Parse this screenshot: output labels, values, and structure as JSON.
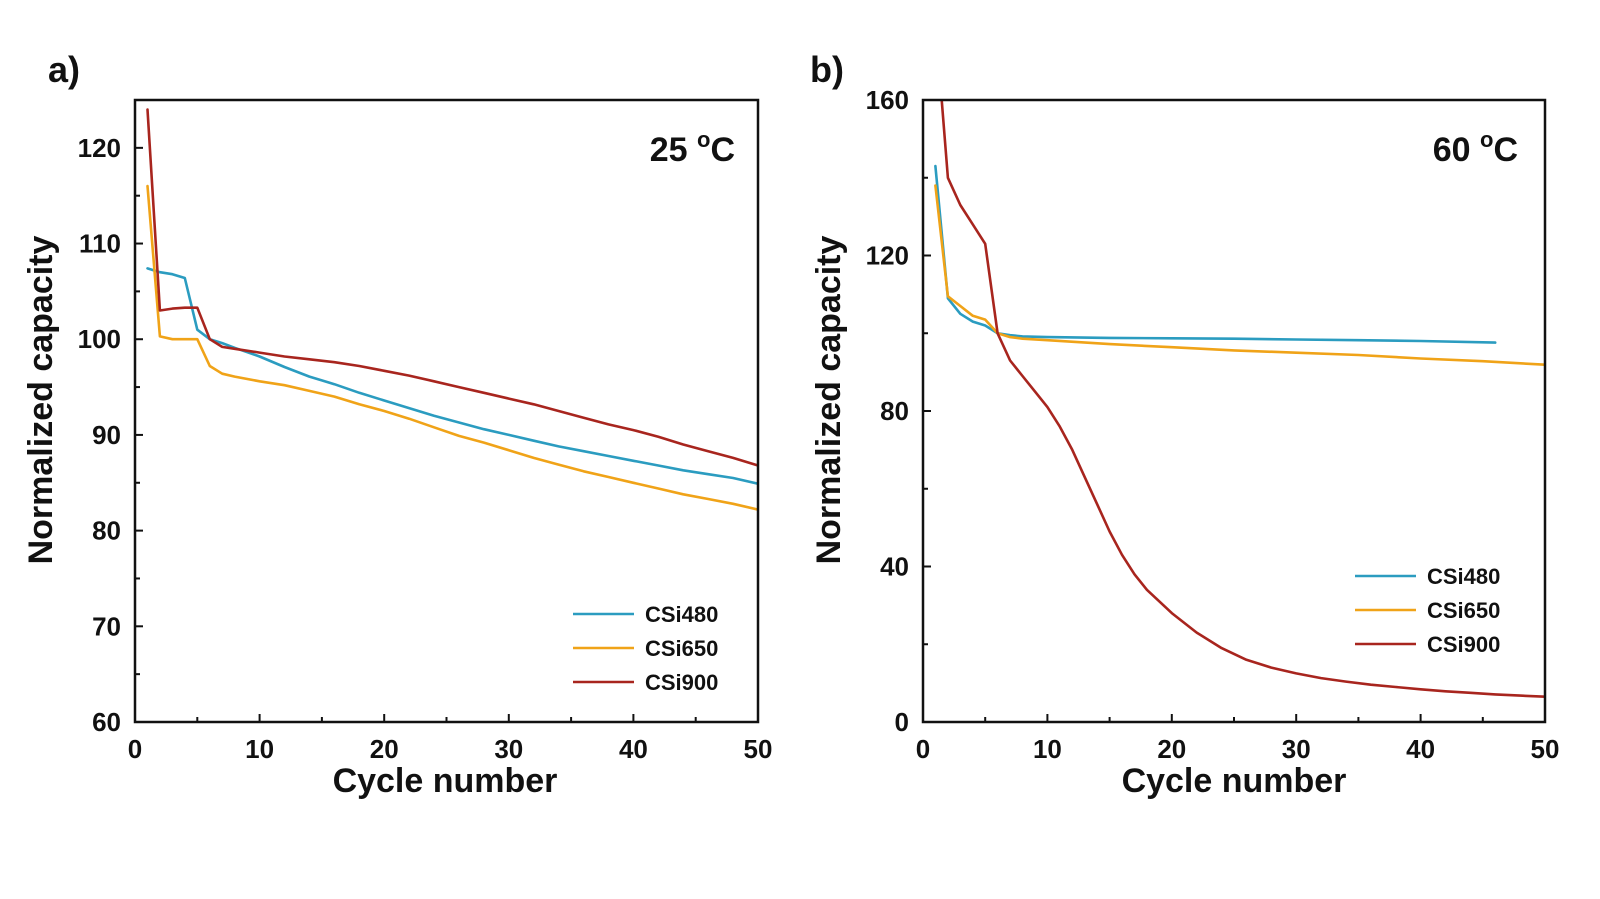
{
  "chart_data": [
    {
      "type": "line",
      "panel_label": "a)",
      "annotation": "25 °C",
      "annotation_main": "25 ",
      "annotation_sup": "o",
      "annotation_unit": "C",
      "xlabel": "Cycle number",
      "ylabel": "Normalized capacity",
      "xlim": [
        0,
        50
      ],
      "ylim": [
        60,
        125
      ],
      "xticks": [
        0,
        10,
        20,
        30,
        40,
        50
      ],
      "yticks": [
        60,
        70,
        80,
        90,
        100,
        110,
        120
      ],
      "legend_position": "bottom-right",
      "series": [
        {
          "name": "CSi480",
          "color": "#2b9cc0",
          "points": [
            [
              1,
              107.4
            ],
            [
              2,
              107
            ],
            [
              3,
              106.8
            ],
            [
              4,
              106.4
            ],
            [
              5,
              101
            ],
            [
              6,
              100
            ],
            [
              7,
              99.6
            ],
            [
              8,
              99.1
            ],
            [
              10,
              98.2
            ],
            [
              12,
              97.1
            ],
            [
              14,
              96.1
            ],
            [
              16,
              95.3
            ],
            [
              18,
              94.4
            ],
            [
              20,
              93.6
            ],
            [
              22,
              92.8
            ],
            [
              24,
              92
            ],
            [
              26,
              91.3
            ],
            [
              28,
              90.6
            ],
            [
              30,
              90
            ],
            [
              32,
              89.4
            ],
            [
              34,
              88.8
            ],
            [
              36,
              88.3
            ],
            [
              38,
              87.8
            ],
            [
              40,
              87.3
            ],
            [
              42,
              86.8
            ],
            [
              44,
              86.3
            ],
            [
              46,
              85.9
            ],
            [
              48,
              85.5
            ],
            [
              50,
              84.9
            ]
          ]
        },
        {
          "name": "CSi650",
          "color": "#f0a318",
          "points": [
            [
              1,
              116
            ],
            [
              2,
              100.3
            ],
            [
              3,
              100
            ],
            [
              4,
              100
            ],
            [
              5,
              100
            ],
            [
              6,
              97.2
            ],
            [
              7,
              96.4
            ],
            [
              8,
              96.1
            ],
            [
              10,
              95.6
            ],
            [
              12,
              95.2
            ],
            [
              14,
              94.6
            ],
            [
              16,
              94
            ],
            [
              18,
              93.2
            ],
            [
              20,
              92.5
            ],
            [
              22,
              91.7
            ],
            [
              24,
              90.8
            ],
            [
              26,
              89.9
            ],
            [
              28,
              89.2
            ],
            [
              30,
              88.4
            ],
            [
              32,
              87.6
            ],
            [
              34,
              86.9
            ],
            [
              36,
              86.2
            ],
            [
              38,
              85.6
            ],
            [
              40,
              85
            ],
            [
              42,
              84.4
            ],
            [
              44,
              83.8
            ],
            [
              46,
              83.3
            ],
            [
              48,
              82.8
            ],
            [
              50,
              82.2
            ]
          ]
        },
        {
          "name": "CSi900",
          "color": "#a8251e",
          "points": [
            [
              1,
              124
            ],
            [
              2,
              103
            ],
            [
              3,
              103.2
            ],
            [
              4,
              103.3
            ],
            [
              5,
              103.3
            ],
            [
              6,
              100
            ],
            [
              7,
              99.2
            ],
            [
              8,
              99
            ],
            [
              10,
              98.6
            ],
            [
              12,
              98.2
            ],
            [
              14,
              97.9
            ],
            [
              16,
              97.6
            ],
            [
              18,
              97.2
            ],
            [
              20,
              96.7
            ],
            [
              22,
              96.2
            ],
            [
              24,
              95.6
            ],
            [
              26,
              95
            ],
            [
              28,
              94.4
            ],
            [
              30,
              93.8
            ],
            [
              32,
              93.2
            ],
            [
              34,
              92.5
            ],
            [
              36,
              91.8
            ],
            [
              38,
              91.1
            ],
            [
              40,
              90.5
            ],
            [
              42,
              89.8
            ],
            [
              44,
              89
            ],
            [
              46,
              88.3
            ],
            [
              48,
              87.6
            ],
            [
              50,
              86.8
            ]
          ]
        }
      ]
    },
    {
      "type": "line",
      "panel_label": "b)",
      "annotation": "60 °C",
      "annotation_main": "60 ",
      "annotation_sup": "o",
      "annotation_unit": "C",
      "xlabel": "Cycle number",
      "ylabel": "Normalized capacity",
      "xlim": [
        0,
        50
      ],
      "ylim": [
        0,
        160
      ],
      "xticks": [
        0,
        10,
        20,
        30,
        40,
        50
      ],
      "yticks": [
        0,
        40,
        80,
        120,
        160
      ],
      "legend_position": "bottom-right",
      "series": [
        {
          "name": "CSi480",
          "color": "#2b9cc0",
          "points": [
            [
              1,
              143
            ],
            [
              2,
              109
            ],
            [
              3,
              105
            ],
            [
              4,
              103
            ],
            [
              5,
              102
            ],
            [
              6,
              100
            ],
            [
              7,
              99.5
            ],
            [
              8,
              99.2
            ],
            [
              10,
              99
            ],
            [
              15,
              98.8
            ],
            [
              20,
              98.7
            ],
            [
              25,
              98.6
            ],
            [
              30,
              98.4
            ],
            [
              35,
              98.2
            ],
            [
              40,
              98
            ],
            [
              46,
              97.6
            ]
          ]
        },
        {
          "name": "CSi650",
          "color": "#f0a318",
          "points": [
            [
              1,
              138
            ],
            [
              2,
              109.5
            ],
            [
              3,
              107
            ],
            [
              4,
              104.5
            ],
            [
              5,
              103.5
            ],
            [
              6,
              100
            ],
            [
              7,
              99
            ],
            [
              8,
              98.6
            ],
            [
              10,
              98.2
            ],
            [
              15,
              97.2
            ],
            [
              20,
              96.4
            ],
            [
              25,
              95.6
            ],
            [
              30,
              95
            ],
            [
              35,
              94.4
            ],
            [
              40,
              93.5
            ],
            [
              45,
              92.8
            ],
            [
              50,
              91.9
            ]
          ]
        },
        {
          "name": "CSi900",
          "color": "#a8251e",
          "points": [
            [
              1.5,
              160
            ],
            [
              2,
              140
            ],
            [
              3,
              133
            ],
            [
              4,
              128
            ],
            [
              5,
              123
            ],
            [
              6,
              100
            ],
            [
              7,
              93
            ],
            [
              8,
              89
            ],
            [
              9,
              85
            ],
            [
              10,
              81
            ],
            [
              11,
              76
            ],
            [
              12,
              70
            ],
            [
              13,
              63
            ],
            [
              14,
              56
            ],
            [
              15,
              49
            ],
            [
              16,
              43
            ],
            [
              17,
              38
            ],
            [
              18,
              34
            ],
            [
              20,
              28
            ],
            [
              22,
              23
            ],
            [
              24,
              19
            ],
            [
              26,
              16
            ],
            [
              28,
              14
            ],
            [
              30,
              12.5
            ],
            [
              32,
              11.3
            ],
            [
              34,
              10.4
            ],
            [
              36,
              9.6
            ],
            [
              38,
              9
            ],
            [
              40,
              8.4
            ],
            [
              42,
              7.9
            ],
            [
              44,
              7.5
            ],
            [
              46,
              7.1
            ],
            [
              48,
              6.8
            ],
            [
              50,
              6.5
            ]
          ]
        }
      ]
    }
  ]
}
